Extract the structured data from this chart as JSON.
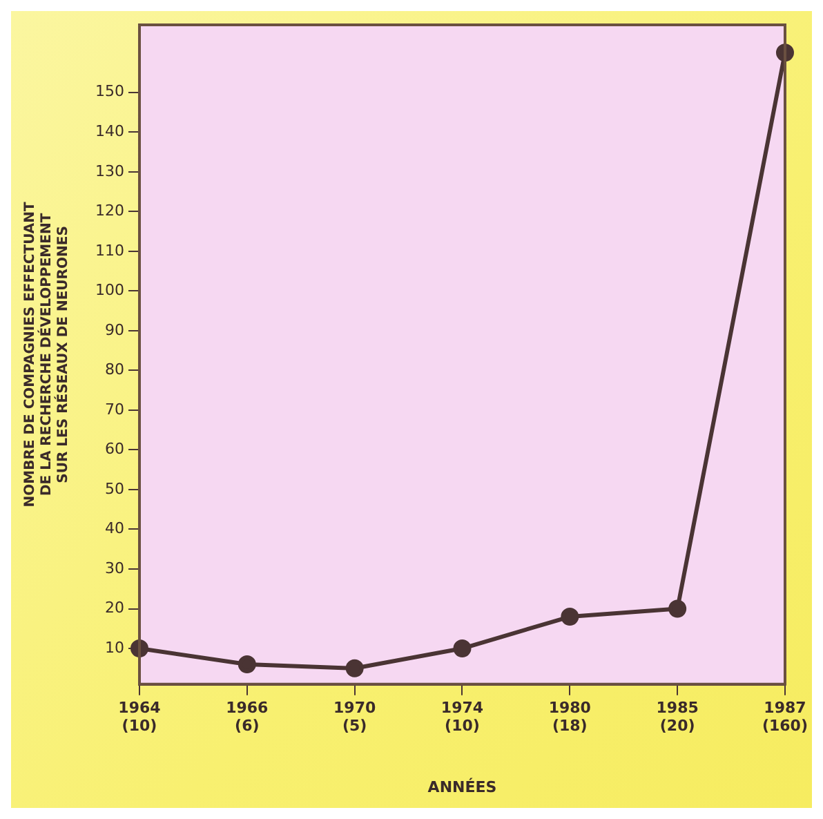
{
  "chart_data": {
    "type": "line",
    "xlabel": "ANNÉES",
    "ylabel": "NOMBRE DE COMPAGNIES EFFECTUANT\nDE LA RECHERCHE DÉVELOPPEMENT\nSUR LES RÉSEAUX DE NEURONES",
    "categories": [
      "1964\n(10)",
      "1966\n(6)",
      "1970\n(5)",
      "1974\n(10)",
      "1980\n(18)",
      "1985\n(20)",
      "1987\n(160)"
    ],
    "series": [
      {
        "color": "#4a3434",
        "values": [
          10,
          6,
          5,
          10,
          18,
          20,
          160
        ]
      }
    ],
    "ylim": [
      1,
      167
    ],
    "yticks": [
      10,
      20,
      30,
      40,
      50,
      60,
      70,
      80,
      90,
      100,
      110,
      120,
      130,
      140,
      150
    ],
    "grid": false,
    "legend": false,
    "marker": "circle",
    "line_style": "solid"
  }
}
